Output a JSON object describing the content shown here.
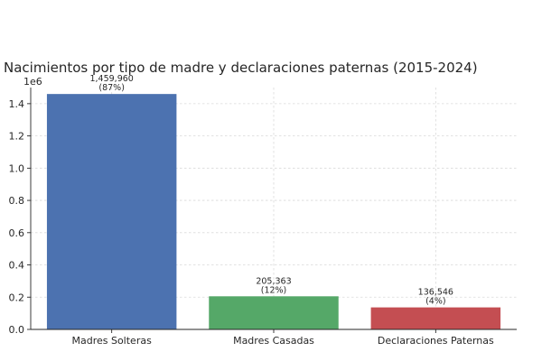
{
  "chart_data": {
    "type": "bar",
    "title": "Nacimientos por tipo de madre y declaraciones paternas (2015-2024)",
    "xlabel": "",
    "ylabel": "",
    "y_offset_label": "1e6",
    "categories": [
      "Madres Solteras",
      "Madres Casadas",
      "Declaraciones Paternas"
    ],
    "values": [
      1459960,
      205363,
      136546
    ],
    "value_labels": [
      "1,459,960",
      "205,363",
      "136,546"
    ],
    "percent_labels": [
      "(87%)",
      "(12%)",
      "(4%)"
    ],
    "colors": [
      "#4c72b0",
      "#55a868",
      "#c44e52"
    ],
    "ylim": [
      0,
      1500000
    ],
    "yticks": [
      0,
      200000,
      400000,
      600000,
      800000,
      1000000,
      1200000,
      1400000
    ],
    "ytick_labels": [
      "0.0",
      "0.2",
      "0.4",
      "0.6",
      "0.8",
      "1.0",
      "1.2",
      "1.4"
    ],
    "grid": true
  }
}
